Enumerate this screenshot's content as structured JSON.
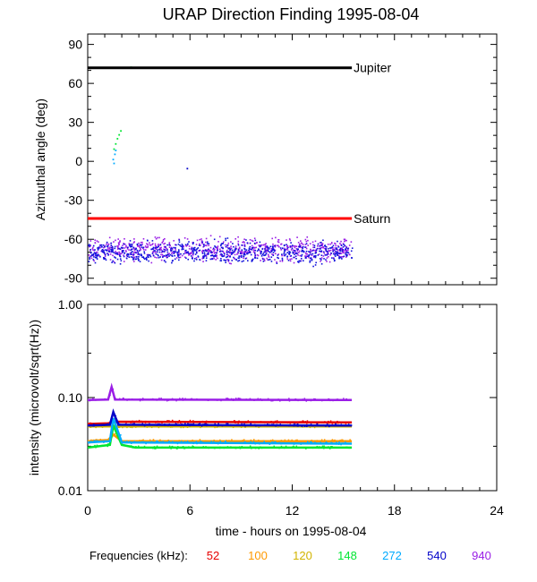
{
  "title": "URAP Direction Finding  1995-08-04",
  "xlabel": "time - hours on 1995-08-04",
  "legend_title": "Frequencies (kHz):",
  "chart_data": [
    {
      "type": "scatter",
      "ylabel": "Azimuthal angle (deg)",
      "xlim": [
        0,
        24
      ],
      "ylim": [
        -95,
        98
      ],
      "x_ticks": [
        "0",
        "6",
        "12",
        "18",
        "24"
      ],
      "y_ticks": [
        "90",
        "60",
        "30",
        "0",
        "-30",
        "-60",
        "-90"
      ],
      "reference_lines": [
        {
          "label": "Jupiter",
          "y": 72,
          "x": [
            0,
            15.5
          ],
          "color": "#000000"
        },
        {
          "label": "Saturn",
          "y": -44,
          "x": [
            0,
            15.5
          ],
          "color": "#ff0000"
        }
      ],
      "scatter_bands": [
        {
          "series": "940",
          "x": [
            0,
            15.5
          ],
          "y": [
            -80,
            -55
          ],
          "color": "#9a1ee6"
        },
        {
          "series": "540",
          "x": [
            0,
            15.5
          ],
          "y": [
            -82,
            -57
          ],
          "color": "#1010dc"
        }
      ],
      "points": [
        {
          "series": "148",
          "x": 1.5,
          "y": 10
        },
        {
          "series": "148",
          "x": 1.6,
          "y": 14
        },
        {
          "series": "148",
          "x": 1.7,
          "y": 18
        },
        {
          "series": "148",
          "x": 1.8,
          "y": 21
        },
        {
          "series": "148",
          "x": 1.9,
          "y": 24
        },
        {
          "series": "272",
          "x": 1.45,
          "y": 2
        },
        {
          "series": "272",
          "x": 1.55,
          "y": 6
        },
        {
          "series": "272",
          "x": 1.6,
          "y": 9
        },
        {
          "series": "272",
          "x": 1.5,
          "y": -1
        },
        {
          "series": "148",
          "x": 2.5,
          "y": 73
        },
        {
          "series": "540",
          "x": 5.8,
          "y": -5
        }
      ]
    },
    {
      "type": "line",
      "ylabel": "intensity (microvolt/sqrt(Hz))",
      "xlim": [
        0,
        24
      ],
      "ylim": [
        0.01,
        1.0
      ],
      "yscale": "log",
      "x_ticks": [
        "0",
        "6",
        "12",
        "18",
        "24"
      ],
      "y_ticks": [
        "1.00",
        "0.10",
        "0.01"
      ],
      "series": [
        {
          "name": "52",
          "color": "#e60000",
          "x": [
            0,
            1.2,
            1.6,
            15.5
          ],
          "y": [
            0.052,
            0.053,
            0.055,
            0.054
          ]
        },
        {
          "name": "100",
          "color": "#ff9900",
          "x": [
            0,
            1.2,
            1.5,
            2.0,
            15.5
          ],
          "y": [
            0.034,
            0.035,
            0.04,
            0.034,
            0.034
          ]
        },
        {
          "name": "120",
          "color": "#d2b400",
          "x": [
            0,
            15.5
          ],
          "y": [
            0.049,
            0.049
          ]
        },
        {
          "name": "148",
          "color": "#00e632",
          "x": [
            0,
            1.3,
            1.5,
            2.0,
            2.8,
            15.5
          ],
          "y": [
            0.029,
            0.031,
            0.05,
            0.031,
            0.029,
            0.029
          ]
        },
        {
          "name": "272",
          "color": "#00aaff",
          "x": [
            0,
            1.3,
            1.5,
            2.0,
            15.5
          ],
          "y": [
            0.033,
            0.034,
            0.06,
            0.033,
            0.032
          ]
        },
        {
          "name": "540",
          "color": "#0000c8",
          "x": [
            0,
            1.3,
            1.5,
            1.8,
            15.5
          ],
          "y": [
            0.05,
            0.051,
            0.07,
            0.051,
            0.05
          ]
        },
        {
          "name": "940",
          "color": "#9a1ee6",
          "x": [
            0,
            1.2,
            1.4,
            1.6,
            15.5
          ],
          "y": [
            0.094,
            0.095,
            0.13,
            0.095,
            0.094
          ]
        }
      ]
    }
  ],
  "legend": [
    {
      "label": "52",
      "color": "#e60000"
    },
    {
      "label": "100",
      "color": "#ff9900"
    },
    {
      "label": "120",
      "color": "#d2b400"
    },
    {
      "label": "148",
      "color": "#00e632"
    },
    {
      "label": "272",
      "color": "#00aaff"
    },
    {
      "label": "540",
      "color": "#0000c8"
    },
    {
      "label": "940",
      "color": "#9a1ee6"
    }
  ]
}
